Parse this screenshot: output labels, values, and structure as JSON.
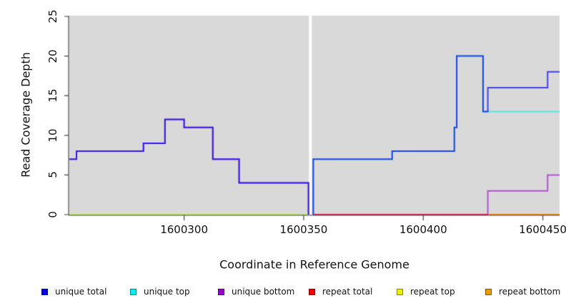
{
  "figure": {
    "xlabel": "Coordinate in Reference Genome",
    "ylabel": "Read Coverage Depth"
  },
  "legend": {
    "items": [
      {
        "label": "unique total",
        "color": "#0000ee",
        "border": "#000080"
      },
      {
        "label": "unique top",
        "color": "#00eeee",
        "border": "#008888"
      },
      {
        "label": "unique bottom",
        "color": "#9900cc",
        "border": "#550077"
      },
      {
        "label": "repeat total",
        "color": "#ee0000",
        "border": "#880000"
      },
      {
        "label": "repeat top",
        "color": "#eeee00",
        "border": "#888800"
      },
      {
        "label": "repeat bottom",
        "color": "#ee9900",
        "border": "#885500"
      }
    ]
  },
  "chart_data": {
    "type": "line",
    "subtype": "step",
    "title": "",
    "xlabel": "Coordinate in Reference Genome",
    "ylabel": "Read Coverage Depth",
    "xlim": [
      1600252,
      1600457
    ],
    "ylim": [
      0,
      25
    ],
    "plot_background": "#d9d9d9",
    "grid": false,
    "legend_position": "bottom",
    "gap_region_x": [
      1600352.2,
      1600353.4
    ],
    "x_ticks": [
      {
        "v": 1600300,
        "label": "1600300"
      },
      {
        "v": 1600350,
        "label": "1600350"
      },
      {
        "v": 1600400,
        "label": "1600400"
      },
      {
        "v": 1600450,
        "label": "1600450"
      }
    ],
    "y_ticks": [
      {
        "v": 0,
        "label": "0"
      },
      {
        "v": 5,
        "label": "5"
      },
      {
        "v": 10,
        "label": "10"
      },
      {
        "v": 15,
        "label": "15"
      },
      {
        "v": 20,
        "label": "20"
      },
      {
        "v": 25,
        "label": "25"
      }
    ],
    "series": [
      {
        "name": "unique total",
        "color": "#0000ee",
        "alpha": 0.7,
        "z": 6,
        "segments": [
          {
            "steps": [
              [
                1600252,
                7
              ],
              [
                1600255,
                8
              ],
              [
                1600283,
                9
              ],
              [
                1600292,
                12
              ],
              [
                1600300,
                11
              ],
              [
                1600312,
                7
              ],
              [
                1600323,
                4
              ],
              [
                1600352,
                0
              ]
            ],
            "end": 1600352
          },
          {
            "steps": [
              [
                1600354,
                0
              ],
              [
                1600354,
                7
              ],
              [
                1600387,
                8
              ],
              [
                1600413,
                11
              ],
              [
                1600414,
                20
              ],
              [
                1600425,
                13
              ],
              [
                1600427,
                16
              ],
              [
                1600452,
                18
              ]
            ],
            "end": 1600457
          }
        ]
      },
      {
        "name": "unique top",
        "color": "#00eeee",
        "alpha": 0.62,
        "z": 1,
        "segments": [
          {
            "steps": [
              [
                1600252,
                0
              ]
            ],
            "end": 1600352
          },
          {
            "steps": [
              [
                1600354,
                0
              ],
              [
                1600354,
                7
              ],
              [
                1600387,
                8
              ],
              [
                1600413,
                11
              ],
              [
                1600414,
                20
              ],
              [
                1600425,
                13
              ]
            ],
            "end": 1600457
          }
        ]
      },
      {
        "name": "unique bottom",
        "color": "#9900cc",
        "alpha": 0.62,
        "z": 3,
        "segments": [
          {
            "steps": [
              [
                1600252,
                7
              ],
              [
                1600255,
                8
              ],
              [
                1600283,
                9
              ],
              [
                1600292,
                12
              ],
              [
                1600300,
                11
              ],
              [
                1600312,
                7
              ],
              [
                1600323,
                4
              ],
              [
                1600352,
                0
              ]
            ],
            "end": 1600352
          },
          {
            "steps": [
              [
                1600354,
                0
              ],
              [
                1600427,
                3
              ],
              [
                1600452,
                5
              ]
            ],
            "end": 1600457
          }
        ]
      },
      {
        "name": "repeat total",
        "color": "#ee0000",
        "alpha": 0.62,
        "z": 4,
        "segments": [
          {
            "steps": [
              [
                1600354,
                0
              ]
            ],
            "end": 1600457
          }
        ]
      },
      {
        "name": "repeat top",
        "color": "#eeee00",
        "alpha": 0.62,
        "z": 2,
        "segments": [
          {
            "steps": [
              [
                1600252,
                0
              ]
            ],
            "end": 1600352
          }
        ]
      },
      {
        "name": "repeat bottom",
        "color": "#ee9900",
        "alpha": 0.8,
        "z": 5,
        "segments": [
          {
            "steps": [
              [
                1600427,
                0
              ]
            ],
            "end": 1600457
          }
        ]
      }
    ]
  }
}
